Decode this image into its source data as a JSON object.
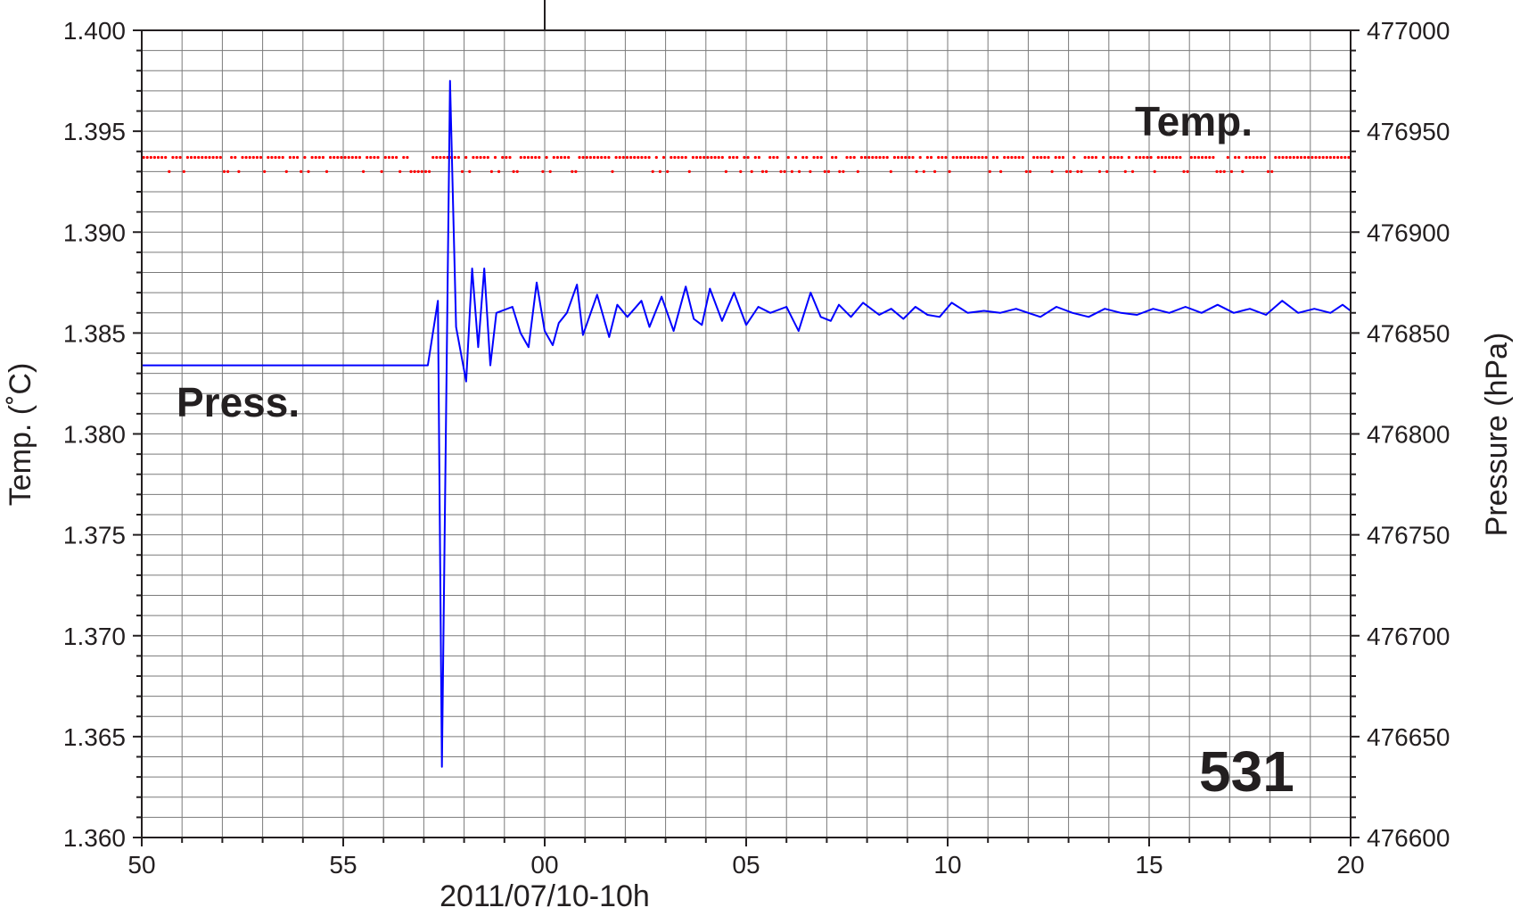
{
  "chart_data": {
    "type": "line",
    "xlabel": "2011/07/10-10h",
    "ylabel_left": "Temp. (˚C)",
    "ylabel_right": "Pressure (hPa)",
    "x_ticks": [
      "50",
      "55",
      "00",
      "05",
      "10",
      "15",
      "20"
    ],
    "x_tick_minutes": [
      -10,
      -5,
      0,
      5,
      10,
      15,
      20
    ],
    "x_range_minutes": [
      -10,
      20
    ],
    "y_left_range": [
      1.36,
      1.4
    ],
    "y_left_ticks": [
      "1.360",
      "1.365",
      "1.370",
      "1.375",
      "1.380",
      "1.385",
      "1.390",
      "1.395",
      "1.400"
    ],
    "y_right_range": [
      476600,
      477000
    ],
    "y_right_ticks": [
      "476600",
      "476650",
      "476700",
      "476750",
      "476800",
      "476850",
      "476900",
      "476950",
      "477000"
    ],
    "grid": true,
    "annotations": {
      "press_label": "Press.",
      "temp_label": "Temp.",
      "station_id": "531"
    },
    "series": [
      {
        "name": "Press.",
        "axis": "right",
        "color": "#0000ff",
        "style": "line",
        "x": [
          -10.0,
          -7.5,
          -5.0,
          -3.5,
          -2.9,
          -2.65,
          -2.55,
          -2.35,
          -2.2,
          -1.95,
          -1.8,
          -1.65,
          -1.5,
          -1.35,
          -1.2,
          -0.8,
          -0.6,
          -0.4,
          -0.2,
          0.0,
          0.2,
          0.35,
          0.55,
          0.8,
          0.95,
          1.3,
          1.6,
          1.8,
          2.05,
          2.4,
          2.6,
          2.9,
          3.2,
          3.5,
          3.7,
          3.9,
          4.1,
          4.4,
          4.7,
          5.0,
          5.3,
          5.6,
          6.0,
          6.3,
          6.6,
          6.85,
          7.1,
          7.3,
          7.6,
          7.9,
          8.3,
          8.6,
          8.9,
          9.2,
          9.5,
          9.8,
          10.1,
          10.5,
          10.9,
          11.3,
          11.7,
          12.0,
          12.3,
          12.7,
          13.1,
          13.5,
          13.9,
          14.3,
          14.7,
          15.1,
          15.5,
          15.9,
          16.3,
          16.7,
          17.1,
          17.5,
          17.9,
          18.3,
          18.7,
          19.1,
          19.5,
          19.8,
          20.0
        ],
        "values": [
          476834,
          476834,
          476834,
          476834,
          476834,
          476866,
          476635,
          476975,
          476853,
          476826,
          476882,
          476843,
          476882,
          476834,
          476860,
          476863,
          476850,
          476843,
          476875,
          476851,
          476844,
          476855,
          476860,
          476874,
          476849,
          476869,
          476848,
          476864,
          476858,
          476866,
          476853,
          476868,
          476851,
          476873,
          476857,
          476854,
          476872,
          476856,
          476870,
          476854,
          476863,
          476860,
          476863,
          476851,
          476870,
          476858,
          476856,
          476864,
          476858,
          476865,
          476859,
          476862,
          476857,
          476863,
          476859,
          476858,
          476865,
          476860,
          476861,
          476860,
          476862,
          476860,
          476858,
          476863,
          476860,
          476858,
          476862,
          476860,
          476859,
          476862,
          476860,
          476863,
          476860,
          476864,
          476860,
          476862,
          476859,
          476866,
          476860,
          476862,
          476860,
          476864,
          476861
        ]
      },
      {
        "name": "Temp.",
        "axis": "left",
        "color": "#ff0000",
        "style": "dots",
        "levels": [
          1.3937,
          1.393
        ],
        "x_range_minutes": [
          -10,
          20
        ],
        "count": 330
      }
    ]
  }
}
